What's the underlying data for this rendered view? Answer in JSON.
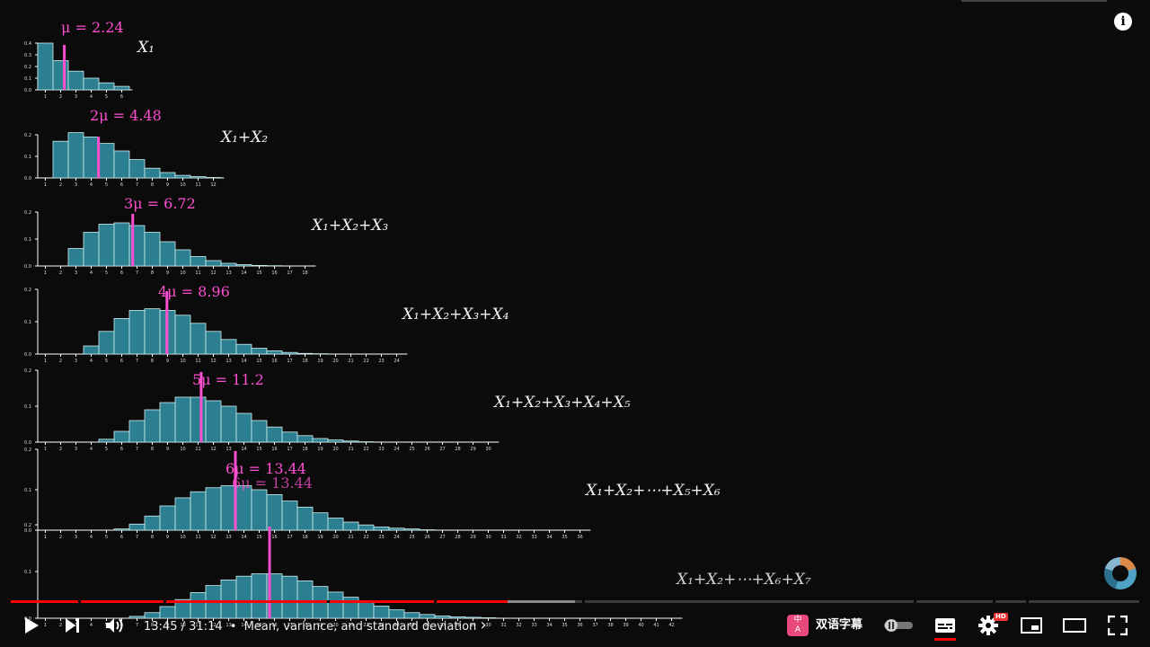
{
  "info_button_label": "i",
  "mean_symbol": "μ",
  "mu": 2.24,
  "colors": {
    "bar": "#2b7f90",
    "bar_edge": "#cfeff0",
    "mean": "#ff4fd1",
    "axis": "#ffffff",
    "progress_played": "#ff0000"
  },
  "rows": [
    {
      "mean_label": "μ = 2.24",
      "sum_label": "X₁",
      "x_ticks": [
        "1",
        "2",
        "3",
        "4",
        "5",
        "6"
      ],
      "y_ticks": [
        "0.4",
        "0.3",
        "0.2",
        "0.1",
        "0.0"
      ],
      "values": [
        0.4,
        0.25,
        0.16,
        0.1,
        0.06,
        0.03
      ],
      "mean": 2.24
    },
    {
      "mean_label": "2μ = 4.48",
      "sum_label": "X₁+X₂",
      "x_ticks": [
        "1",
        "2",
        "3",
        "4",
        "5",
        "6",
        "7",
        "8",
        "9",
        "10",
        "11",
        "12"
      ],
      "y_ticks": [
        "0.2",
        "0.1",
        "0.0"
      ],
      "values": [
        0,
        0.17,
        0.21,
        0.19,
        0.16,
        0.125,
        0.085,
        0.045,
        0.025,
        0.012,
        0.006,
        0.002
      ],
      "mean": 4.48
    },
    {
      "mean_label": "3μ = 6.72",
      "sum_label": "X₁+X₂+X₃",
      "x_ticks": [
        "1",
        "2",
        "3",
        "4",
        "5",
        "6",
        "7",
        "8",
        "9",
        "10",
        "11",
        "12",
        "13",
        "14",
        "15",
        "16",
        "17",
        "18"
      ],
      "y_ticks": [
        "0.2",
        "0.1",
        "0.0"
      ],
      "values": [
        0,
        0,
        0.065,
        0.125,
        0.155,
        0.16,
        0.15,
        0.125,
        0.09,
        0.06,
        0.035,
        0.02,
        0.01,
        0.005,
        0.002,
        0.001,
        0,
        0
      ],
      "mean": 6.72
    },
    {
      "mean_label": "4μ = 8.96",
      "sum_label": "X₁+X₂+X₃+X₄",
      "x_ticks": [
        "1",
        "2",
        "3",
        "4",
        "5",
        "6",
        "7",
        "8",
        "9",
        "10",
        "11",
        "12",
        "13",
        "14",
        "15",
        "16",
        "17",
        "18",
        "19",
        "20",
        "21",
        "22",
        "23",
        "24"
      ],
      "y_ticks": [
        "0.2",
        "0.1",
        "0.0"
      ],
      "values": [
        0,
        0,
        0,
        0.025,
        0.07,
        0.11,
        0.135,
        0.14,
        0.135,
        0.12,
        0.095,
        0.07,
        0.045,
        0.03,
        0.018,
        0.01,
        0.005,
        0.002,
        0.001,
        0,
        0,
        0,
        0,
        0
      ],
      "mean": 8.96
    },
    {
      "mean_label": "5μ = 11.2",
      "sum_label": "X₁+X₂+X₃+X₄+X₅",
      "x_ticks": [
        "1",
        "2",
        "3",
        "4",
        "5",
        "6",
        "7",
        "8",
        "9",
        "10",
        "11",
        "12",
        "13",
        "14",
        "15",
        "16",
        "17",
        "18",
        "19",
        "20",
        "21",
        "22",
        "23",
        "24",
        "25",
        "26",
        "27",
        "28",
        "29",
        "30"
      ],
      "y_ticks": [
        "0.2",
        "0.1",
        "0.0"
      ],
      "values": [
        0,
        0,
        0,
        0,
        0.008,
        0.03,
        0.06,
        0.09,
        0.11,
        0.125,
        0.125,
        0.115,
        0.1,
        0.08,
        0.06,
        0.042,
        0.028,
        0.018,
        0.01,
        0.006,
        0.003,
        0.001,
        0,
        0,
        0,
        0,
        0,
        0,
        0,
        0
      ],
      "mean": 11.2
    },
    {
      "mean_label": "6μ = 13.44",
      "ghost_label": "6μ = 13.44",
      "sum_label": "X₁+X₂+⋯+X₅+X₆",
      "x_ticks": [
        "1",
        "2",
        "3",
        "4",
        "5",
        "6",
        "7",
        "8",
        "9",
        "10",
        "11",
        "12",
        "13",
        "14",
        "15",
        "16",
        "17",
        "18",
        "19",
        "20",
        "21",
        "22",
        "23",
        "24",
        "25",
        "26",
        "27",
        "28",
        "29",
        "30",
        "31",
        "32",
        "33",
        "34",
        "35",
        "36"
      ],
      "y_ticks": [
        "0.2",
        "0.1",
        "0.0"
      ],
      "values": [
        0,
        0,
        0,
        0,
        0,
        0.003,
        0.015,
        0.035,
        0.06,
        0.08,
        0.095,
        0.105,
        0.11,
        0.11,
        0.1,
        0.088,
        0.072,
        0.057,
        0.043,
        0.03,
        0.02,
        0.013,
        0.008,
        0.005,
        0.003,
        0.001,
        0,
        0,
        0,
        0,
        0,
        0,
        0,
        0,
        0,
        0
      ],
      "mean": 13.44
    },
    {
      "mean_label": "",
      "sum_label": "X₁+X₂+⋯+X₆+X₇",
      "x_ticks": [
        "1",
        "2",
        "3",
        "4",
        "5",
        "6",
        "7",
        "8",
        "9",
        "10",
        "11",
        "12",
        "13",
        "14",
        "15",
        "16",
        "17",
        "18",
        "19",
        "20",
        "21",
        "22",
        "23",
        "24",
        "25",
        "26",
        "27",
        "28",
        "29",
        "30",
        "31",
        "32",
        "33",
        "34",
        "35",
        "36",
        "37",
        "38",
        "39",
        "40",
        "41",
        "42"
      ],
      "y_ticks": [
        "0.2",
        "0.1",
        "0.0"
      ],
      "values": [
        0,
        0,
        0,
        0,
        0,
        0,
        0.004,
        0.012,
        0.025,
        0.04,
        0.055,
        0.07,
        0.082,
        0.09,
        0.095,
        0.095,
        0.09,
        0.08,
        0.068,
        0.056,
        0.045,
        0.035,
        0.026,
        0.018,
        0.012,
        0.008,
        0.005,
        0.003,
        0.002,
        0.001,
        0,
        0,
        0,
        0,
        0,
        0,
        0,
        0,
        0,
        0,
        0,
        0
      ],
      "mean": 15.68
    }
  ],
  "player": {
    "current_time": "13:45",
    "duration": "31:14",
    "separator": "/",
    "chapter": "Mean, variance, and standard deviation",
    "chapter_arrow": "›",
    "subtitle_badge": "中\nA",
    "subtitle_label": "双语字幕",
    "hd_badge": "HD",
    "progress_played_fraction": 0.44,
    "progress_buffered_fraction": 0.5,
    "chapter_gap_fractions": [
      0.06,
      0.135,
      0.28,
      0.375,
      0.506,
      0.8,
      0.87,
      0.9
    ]
  }
}
